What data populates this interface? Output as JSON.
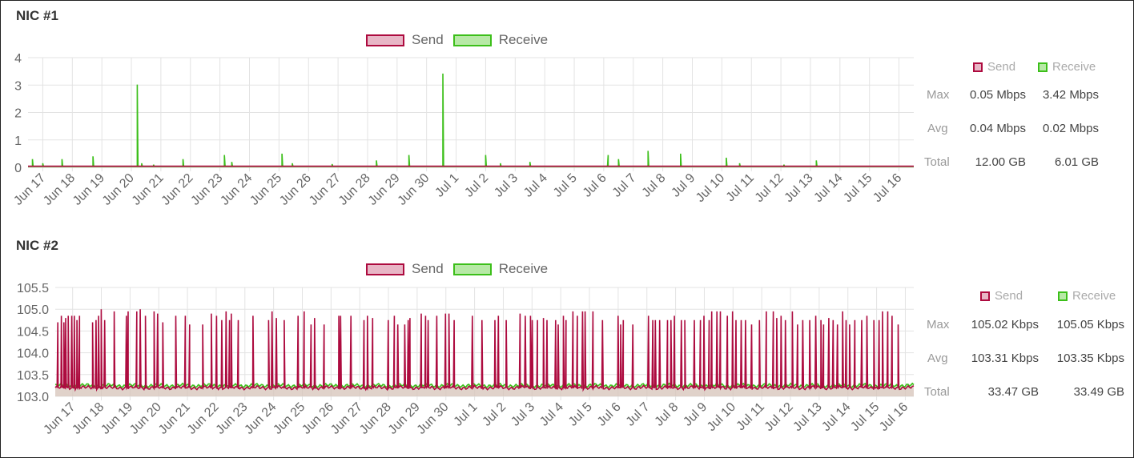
{
  "colors": {
    "send_stroke": "#ad0b3f",
    "send_fill": "#e8b6c6",
    "receive_stroke": "#3cbf1a",
    "receive_fill": "#b7e9a6",
    "grid": "#e3e3e3",
    "axis_text": "#666666"
  },
  "legend": {
    "send": "Send",
    "receive": "Receive"
  },
  "nic1": {
    "title": "NIC #1",
    "stats": {
      "header_send": "Send",
      "header_receive": "Receive",
      "max_label": "Max",
      "avg_label": "Avg",
      "total_label": "Total",
      "max_send": "0.05 Mbps",
      "max_receive": "3.42 Mbps",
      "avg_send": "0.04 Mbps",
      "avg_receive": "0.02 Mbps",
      "total_send": "12.00 GB",
      "total_receive": "6.01 GB"
    }
  },
  "nic2": {
    "title": "NIC #2",
    "stats": {
      "header_send": "Send",
      "header_receive": "Receive",
      "max_label": "Max",
      "avg_label": "Avg",
      "total_label": "Total",
      "max_send": "105.02 Kbps",
      "max_receive": "105.05 Kbps",
      "avg_send": "103.31 Kbps",
      "avg_receive": "103.35 Kbps",
      "total_send": "33.47 GB",
      "total_receive": "33.49 GB"
    }
  },
  "chart_data": [
    {
      "type": "area",
      "x": [
        "Jun 17",
        "Jun 18",
        "Jun 19",
        "Jun 20",
        "Jun 21",
        "Jun 22",
        "Jun 23",
        "Jun 24",
        "Jun 25",
        "Jun 26",
        "Jun 27",
        "Jun 28",
        "Jun 29",
        "Jun 30",
        "Jul 1",
        "Jul 2",
        "Jul 3",
        "Jul 4",
        "Jul 5",
        "Jul 6",
        "Jul 7",
        "Jul 8",
        "Jul 9",
        "Jul 10",
        "Jul 11",
        "Jul 12",
        "Jul 13",
        "Jul 14",
        "Jul 15",
        "Jul 16"
      ],
      "ylim": [
        0,
        4
      ],
      "yticks": [
        "0",
        "1",
        "2",
        "3",
        "4"
      ],
      "grid": true,
      "legend_position": "top",
      "series": [
        {
          "name": "Send",
          "baseline": 0.04,
          "peaks": []
        },
        {
          "name": "Receive",
          "baseline": 0.02,
          "peaks": [
            [
              0.15,
              0.3
            ],
            [
              0.5,
              0.15
            ],
            [
              1.15,
              0.3
            ],
            [
              2.2,
              0.4
            ],
            [
              3.7,
              3.02
            ],
            [
              3.85,
              0.15
            ],
            [
              4.25,
              0.1
            ],
            [
              5.25,
              0.3
            ],
            [
              6.65,
              0.45
            ],
            [
              6.9,
              0.2
            ],
            [
              8.6,
              0.5
            ],
            [
              8.95,
              0.15
            ],
            [
              10.3,
              0.12
            ],
            [
              11.8,
              0.25
            ],
            [
              12.9,
              0.45
            ],
            [
              14.05,
              3.42
            ],
            [
              15.5,
              0.45
            ],
            [
              16.0,
              0.15
            ],
            [
              17.0,
              0.2
            ],
            [
              19.65,
              0.45
            ],
            [
              20.0,
              0.3
            ],
            [
              21.0,
              0.6
            ],
            [
              22.1,
              0.5
            ],
            [
              23.65,
              0.35
            ],
            [
              24.1,
              0.15
            ],
            [
              25.6,
              0.1
            ],
            [
              26.7,
              0.25
            ]
          ]
        }
      ]
    },
    {
      "type": "area",
      "x": [
        "Jun 17",
        "Jun 18",
        "Jun 19",
        "Jun 20",
        "Jun 21",
        "Jun 22",
        "Jun 23",
        "Jun 24",
        "Jun 25",
        "Jun 26",
        "Jun 27",
        "Jun 28",
        "Jun 29",
        "Jun 30",
        "Jul 1",
        "Jul 2",
        "Jul 3",
        "Jul 4",
        "Jul 5",
        "Jul 6",
        "Jul 7",
        "Jul 8",
        "Jul 9",
        "Jul 10",
        "Jul 11",
        "Jul 12",
        "Jul 13",
        "Jul 14",
        "Jul 15",
        "Jul 16"
      ],
      "ylim": [
        103.0,
        105.5
      ],
      "yticks": [
        "103.0",
        "103.5",
        "104.0",
        "104.5",
        "105.0",
        "105.5"
      ],
      "grid": true,
      "legend_position": "top",
      "series": [
        {
          "name": "Send",
          "baseline": 103.2,
          "peaks": [
            [
              0.15,
              104.7
            ],
            [
              0.35,
              104.85
            ],
            [
              0.5,
              104.7
            ],
            [
              0.6,
              104.8
            ],
            [
              0.75,
              104.85
            ],
            [
              0.95,
              104.85
            ],
            [
              1.1,
              104.85
            ],
            [
              1.25,
              104.75
            ],
            [
              1.4,
              104.85
            ],
            [
              2.15,
              104.7
            ],
            [
              2.35,
              104.75
            ],
            [
              2.5,
              104.85
            ],
            [
              2.65,
              105.0
            ],
            [
              2.85,
              104.75
            ],
            [
              3.4,
              104.95
            ],
            [
              4.1,
              104.85
            ],
            [
              4.2,
              104.95
            ],
            [
              4.7,
              104.95
            ],
            [
              4.9,
              105.0
            ],
            [
              5.2,
              104.85
            ],
            [
              5.7,
              104.95
            ],
            [
              5.9,
              104.9
            ],
            [
              6.2,
              104.7
            ],
            [
              6.95,
              104.85
            ],
            [
              7.5,
              104.85
            ],
            [
              7.75,
              104.65
            ],
            [
              8.5,
              104.65
            ],
            [
              9.0,
              104.9
            ],
            [
              9.3,
              104.85
            ],
            [
              9.6,
              104.75
            ],
            [
              9.85,
              104.95
            ],
            [
              10.05,
              104.75
            ],
            [
              10.15,
              104.9
            ],
            [
              10.55,
              104.75
            ],
            [
              11.4,
              104.85
            ],
            [
              12.3,
              104.75
            ],
            [
              12.5,
              104.95
            ],
            [
              12.75,
              104.8
            ],
            [
              13.2,
              104.75
            ],
            [
              14.0,
              104.85
            ],
            [
              14.35,
              104.95
            ],
            [
              14.75,
              104.65
            ],
            [
              14.95,
              104.8
            ],
            [
              15.5,
              104.65
            ],
            [
              16.35,
              104.85
            ],
            [
              16.45,
              104.85
            ],
            [
              17.05,
              104.85
            ],
            [
              17.8,
              104.75
            ],
            [
              18.0,
              104.85
            ],
            [
              18.3,
              104.8
            ],
            [
              19.2,
              104.75
            ],
            [
              19.55,
              104.85
            ],
            [
              19.75,
              104.65
            ],
            [
              20.15,
              104.65
            ],
            [
              20.35,
              104.75
            ],
            [
              20.45,
              104.8
            ],
            [
              21.1,
              104.9
            ],
            [
              21.35,
              104.85
            ],
            [
              21.5,
              104.75
            ],
            [
              22.0,
              104.85
            ],
            [
              22.5,
              104.9
            ],
            [
              22.7,
              104.9
            ],
            [
              23.0,
              104.75
            ],
            [
              24.05,
              104.85
            ],
            [
              24.6,
              104.75
            ],
            [
              25.35,
              104.75
            ],
            [
              25.55,
              104.85
            ],
            [
              26.0,
              104.75
            ],
            [
              26.8,
              104.9
            ],
            [
              27.1,
              104.85
            ],
            [
              27.4,
              104.85
            ],
            [
              27.5,
              104.75
            ],
            [
              27.8,
              104.75
            ],
            [
              28.15,
              104.8
            ],
            [
              28.35,
              104.75
            ],
            [
              28.85,
              104.75
            ],
            [
              29.0,
              104.65
            ],
            [
              29.3,
              104.85
            ],
            [
              29.45,
              104.75
            ],
            [
              29.85,
              104.95
            ],
            [
              30.1,
              104.85
            ],
            [
              30.4,
              104.95
            ],
            [
              30.55,
              104.95
            ],
            [
              31.0,
              104.95
            ],
            [
              31.55,
              104.75
            ],
            [
              32.45,
              104.85
            ],
            [
              32.6,
              104.65
            ],
            [
              32.75,
              104.75
            ],
            [
              33.3,
              104.65
            ],
            [
              34.2,
              104.85
            ],
            [
              34.45,
              104.75
            ],
            [
              34.6,
              104.75
            ],
            [
              34.85,
              104.75
            ],
            [
              35.3,
              104.75
            ],
            [
              35.5,
              104.75
            ],
            [
              35.7,
              104.85
            ],
            [
              36.1,
              104.75
            ],
            [
              36.3,
              104.75
            ],
            [
              36.85,
              104.75
            ],
            [
              37.2,
              104.75
            ],
            [
              37.4,
              104.85
            ],
            [
              37.7,
              104.75
            ],
            [
              37.85,
              104.95
            ],
            [
              38.15,
              104.95
            ],
            [
              38.35,
              104.95
            ],
            [
              38.75,
              104.85
            ],
            [
              39.05,
              104.95
            ],
            [
              39.25,
              104.75
            ],
            [
              39.55,
              104.75
            ],
            [
              39.8,
              104.75
            ],
            [
              40.15,
              104.65
            ],
            [
              40.6,
              104.75
            ],
            [
              41.0,
              104.95
            ],
            [
              41.4,
              104.95
            ],
            [
              41.6,
              104.8
            ],
            [
              41.85,
              104.85
            ],
            [
              42.1,
              104.75
            ],
            [
              42.5,
              104.95
            ],
            [
              42.8,
              104.65
            ],
            [
              43.1,
              104.75
            ],
            [
              43.5,
              104.75
            ],
            [
              43.85,
              104.85
            ],
            [
              44.15,
              104.75
            ],
            [
              44.3,
              104.65
            ],
            [
              44.6,
              104.8
            ],
            [
              44.85,
              104.75
            ],
            [
              45.1,
              104.65
            ],
            [
              45.4,
              104.95
            ],
            [
              45.6,
              104.75
            ],
            [
              45.8,
              104.65
            ],
            [
              46.1,
              104.75
            ],
            [
              46.5,
              104.75
            ],
            [
              46.8,
              104.85
            ],
            [
              47.2,
              104.75
            ],
            [
              47.5,
              104.75
            ],
            [
              47.7,
              104.95
            ],
            [
              48.0,
              104.95
            ],
            [
              48.25,
              104.85
            ],
            [
              48.6,
              104.65
            ]
          ]
        },
        {
          "name": "Receive",
          "baseline": 103.25,
          "peaks": []
        }
      ]
    }
  ]
}
